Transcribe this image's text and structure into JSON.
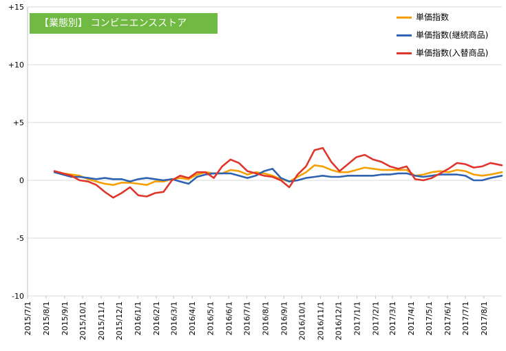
{
  "banner": {
    "title": "【業態別】 コンビニエンスストア",
    "color": "#70b943"
  },
  "chart_data": {
    "type": "line",
    "ylim": [
      -10,
      15
    ],
    "y_ticks": [
      "+15",
      "+10",
      "+5",
      "0",
      "-5",
      "-10"
    ],
    "x_tick_labels": [
      "2015/7/1",
      "2015/8/1",
      "2015/9/1",
      "2015/10/1",
      "2015/11/1",
      "2015/12/1",
      "2016/1/1",
      "2016/2/1",
      "2016/3/1",
      "2016/4/1",
      "2016/5/1",
      "2016/6/1",
      "2016/7/1",
      "2016/8/1",
      "2016/9/1",
      "2016/10/1",
      "2016/11/1",
      "2016/12/1",
      "2017/1/1",
      "2017/2/1",
      "2017/3/1",
      "2017/4/1",
      "2017/5/1",
      "2017/6/1",
      "2017/7/1",
      "2017/8/1"
    ],
    "x_start": "2015-07-01",
    "x_end": "2017-08-31",
    "grid": "horizontal",
    "legend_position": "top-right",
    "series": [
      {
        "name": "単価指数",
        "color": "#f5a000",
        "points": [
          [
            "2015-08-15",
            0.8
          ],
          [
            "2015-08-29",
            0.6
          ],
          [
            "2015-09-12",
            0.5
          ],
          [
            "2015-09-26",
            0.4
          ],
          [
            "2015-10-10",
            0.1
          ],
          [
            "2015-10-24",
            -0.1
          ],
          [
            "2015-11-07",
            -0.3
          ],
          [
            "2015-11-21",
            -0.4
          ],
          [
            "2015-12-05",
            -0.2
          ],
          [
            "2015-12-19",
            -0.2
          ],
          [
            "2016-01-02",
            -0.3
          ],
          [
            "2016-01-16",
            -0.4
          ],
          [
            "2016-01-30",
            -0.1
          ],
          [
            "2016-02-13",
            -0.1
          ],
          [
            "2016-02-27",
            0.1
          ],
          [
            "2016-03-12",
            0.2
          ],
          [
            "2016-03-26",
            0.1
          ],
          [
            "2016-04-09",
            0.5
          ],
          [
            "2016-04-23",
            0.7
          ],
          [
            "2016-05-07",
            0.6
          ],
          [
            "2016-05-21",
            0.6
          ],
          [
            "2016-06-04",
            0.9
          ],
          [
            "2016-06-18",
            0.8
          ],
          [
            "2016-07-02",
            0.5
          ],
          [
            "2016-07-16",
            0.7
          ],
          [
            "2016-07-30",
            0.6
          ],
          [
            "2016-08-13",
            0.4
          ],
          [
            "2016-08-27",
            0.1
          ],
          [
            "2016-09-10",
            -0.1
          ],
          [
            "2016-09-24",
            0.3
          ],
          [
            "2016-10-08",
            0.7
          ],
          [
            "2016-10-22",
            1.3
          ],
          [
            "2016-11-05",
            1.2
          ],
          [
            "2016-11-19",
            0.9
          ],
          [
            "2016-12-03",
            0.7
          ],
          [
            "2016-12-17",
            0.7
          ],
          [
            "2016-12-31",
            0.9
          ],
          [
            "2017-01-14",
            1.1
          ],
          [
            "2017-01-28",
            1.0
          ],
          [
            "2017-02-11",
            0.9
          ],
          [
            "2017-02-25",
            0.9
          ],
          [
            "2017-03-11",
            0.9
          ],
          [
            "2017-03-25",
            0.9
          ],
          [
            "2017-04-08",
            0.4
          ],
          [
            "2017-04-22",
            0.5
          ],
          [
            "2017-05-06",
            0.7
          ],
          [
            "2017-05-20",
            0.8
          ],
          [
            "2017-06-03",
            0.7
          ],
          [
            "2017-06-17",
            0.9
          ],
          [
            "2017-07-01",
            0.8
          ],
          [
            "2017-07-15",
            0.5
          ],
          [
            "2017-07-29",
            0.4
          ],
          [
            "2017-08-12",
            0.5
          ],
          [
            "2017-08-31",
            0.7
          ]
        ]
      },
      {
        "name": "単価指数(継続商品)",
        "color": "#2f62b0",
        "points": [
          [
            "2015-08-15",
            0.7
          ],
          [
            "2015-08-29",
            0.5
          ],
          [
            "2015-09-12",
            0.3
          ],
          [
            "2015-09-26",
            0.3
          ],
          [
            "2015-10-10",
            0.2
          ],
          [
            "2015-10-24",
            0.1
          ],
          [
            "2015-11-07",
            0.2
          ],
          [
            "2015-11-21",
            0.1
          ],
          [
            "2015-12-05",
            0.1
          ],
          [
            "2015-12-19",
            -0.1
          ],
          [
            "2016-01-02",
            0.1
          ],
          [
            "2016-01-16",
            0.2
          ],
          [
            "2016-01-30",
            0.1
          ],
          [
            "2016-02-13",
            0.0
          ],
          [
            "2016-02-27",
            0.1
          ],
          [
            "2016-03-12",
            -0.1
          ],
          [
            "2016-03-26",
            -0.3
          ],
          [
            "2016-04-09",
            0.3
          ],
          [
            "2016-04-23",
            0.5
          ],
          [
            "2016-05-07",
            0.6
          ],
          [
            "2016-05-21",
            0.6
          ],
          [
            "2016-06-04",
            0.6
          ],
          [
            "2016-06-18",
            0.4
          ],
          [
            "2016-07-02",
            0.2
          ],
          [
            "2016-07-16",
            0.4
          ],
          [
            "2016-07-30",
            0.8
          ],
          [
            "2016-08-13",
            1.0
          ],
          [
            "2016-08-27",
            0.2
          ],
          [
            "2016-09-10",
            -0.1
          ],
          [
            "2016-09-24",
            0.0
          ],
          [
            "2016-10-08",
            0.2
          ],
          [
            "2016-10-22",
            0.3
          ],
          [
            "2016-11-05",
            0.4
          ],
          [
            "2016-11-19",
            0.3
          ],
          [
            "2016-12-03",
            0.3
          ],
          [
            "2016-12-17",
            0.4
          ],
          [
            "2016-12-31",
            0.4
          ],
          [
            "2017-01-14",
            0.4
          ],
          [
            "2017-01-28",
            0.4
          ],
          [
            "2017-02-11",
            0.5
          ],
          [
            "2017-02-25",
            0.5
          ],
          [
            "2017-03-11",
            0.6
          ],
          [
            "2017-03-25",
            0.6
          ],
          [
            "2017-04-08",
            0.4
          ],
          [
            "2017-04-22",
            0.3
          ],
          [
            "2017-05-06",
            0.4
          ],
          [
            "2017-05-20",
            0.5
          ],
          [
            "2017-06-03",
            0.5
          ],
          [
            "2017-06-17",
            0.5
          ],
          [
            "2017-07-01",
            0.4
          ],
          [
            "2017-07-15",
            0.0
          ],
          [
            "2017-07-29",
            0.0
          ],
          [
            "2017-08-12",
            0.2
          ],
          [
            "2017-08-31",
            0.4
          ]
        ]
      },
      {
        "name": "単価指数(入替商品)",
        "color": "#e0352b",
        "points": [
          [
            "2015-08-15",
            0.8
          ],
          [
            "2015-08-29",
            0.6
          ],
          [
            "2015-09-12",
            0.4
          ],
          [
            "2015-09-26",
            0.0
          ],
          [
            "2015-10-10",
            -0.1
          ],
          [
            "2015-10-24",
            -0.4
          ],
          [
            "2015-11-07",
            -1.0
          ],
          [
            "2015-11-21",
            -1.5
          ],
          [
            "2015-12-05",
            -1.1
          ],
          [
            "2015-12-19",
            -0.6
          ],
          [
            "2016-01-02",
            -1.3
          ],
          [
            "2016-01-16",
            -1.4
          ],
          [
            "2016-01-30",
            -1.1
          ],
          [
            "2016-02-13",
            -1.0
          ],
          [
            "2016-02-27",
            0.0
          ],
          [
            "2016-03-12",
            0.4
          ],
          [
            "2016-03-26",
            0.2
          ],
          [
            "2016-04-09",
            0.7
          ],
          [
            "2016-04-23",
            0.7
          ],
          [
            "2016-05-07",
            0.2
          ],
          [
            "2016-05-21",
            1.2
          ],
          [
            "2016-06-04",
            1.8
          ],
          [
            "2016-06-18",
            1.5
          ],
          [
            "2016-07-02",
            0.8
          ],
          [
            "2016-07-16",
            0.6
          ],
          [
            "2016-07-30",
            0.4
          ],
          [
            "2016-08-13",
            0.3
          ],
          [
            "2016-08-27",
            0.0
          ],
          [
            "2016-09-10",
            -0.6
          ],
          [
            "2016-09-24",
            0.5
          ],
          [
            "2016-10-08",
            1.2
          ],
          [
            "2016-10-22",
            2.6
          ],
          [
            "2016-11-05",
            2.8
          ],
          [
            "2016-11-19",
            1.6
          ],
          [
            "2016-12-03",
            0.8
          ],
          [
            "2016-12-17",
            1.4
          ],
          [
            "2016-12-31",
            2.0
          ],
          [
            "2017-01-14",
            2.2
          ],
          [
            "2017-01-28",
            1.8
          ],
          [
            "2017-02-11",
            1.6
          ],
          [
            "2017-02-25",
            1.2
          ],
          [
            "2017-03-11",
            1.0
          ],
          [
            "2017-03-25",
            1.2
          ],
          [
            "2017-04-08",
            0.1
          ],
          [
            "2017-04-22",
            0.0
          ],
          [
            "2017-05-06",
            0.2
          ],
          [
            "2017-05-20",
            0.6
          ],
          [
            "2017-06-03",
            1.0
          ],
          [
            "2017-06-17",
            1.5
          ],
          [
            "2017-07-01",
            1.4
          ],
          [
            "2017-07-15",
            1.1
          ],
          [
            "2017-07-29",
            1.2
          ],
          [
            "2017-08-12",
            1.5
          ],
          [
            "2017-08-31",
            1.3
          ]
        ]
      }
    ]
  }
}
